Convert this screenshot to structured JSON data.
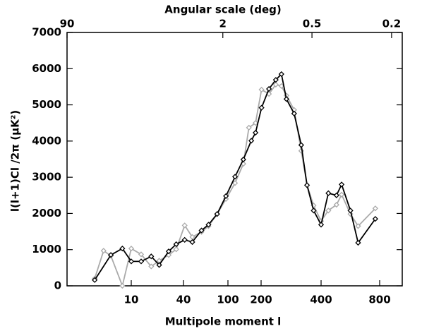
{
  "chart_data": {
    "type": "line",
    "title": "Angular scale (deg)",
    "x_label": "Multipole moment l",
    "y_label": "l(l+1)Cl /2π (μK²)",
    "xlim": [
      2,
      1000
    ],
    "xticks": [
      10,
      40,
      100,
      200,
      400,
      800
    ],
    "x2ticks": [
      90,
      2,
      0.5,
      0.2
    ],
    "ylim": [
      0,
      7000
    ],
    "yticks": [
      0,
      1000,
      2000,
      3000,
      4000,
      5000,
      6000,
      7000
    ],
    "series": [
      {
        "color": "#aaaaaa",
        "x": [
          4,
          5,
          6,
          8,
          10,
          13,
          17,
          21,
          27,
          33,
          41,
          48,
          58,
          67,
          80,
          96,
          116,
          138,
          155,
          178,
          201,
          219,
          237,
          253,
          268,
          293,
          318,
          340,
          367,
          400,
          436,
          480,
          510,
          566,
          620,
          760
        ],
        "values": [
          200,
          970,
          830,
          0,
          1030,
          870,
          535,
          695,
          850,
          1010,
          1670,
          1350,
          1490,
          1650,
          1985,
          2400,
          2840,
          3370,
          4370,
          4500,
          5420,
          5300,
          5560,
          5520,
          5260,
          4860,
          3730,
          2780,
          2220,
          1790,
          2080,
          2240,
          2520,
          1985,
          1650,
          2140
        ]
      },
      {
        "color": "#000000",
        "x": [
          4,
          6,
          8,
          10,
          13,
          17,
          21,
          27,
          33,
          41,
          48,
          58,
          67,
          80,
          96,
          116,
          138,
          163,
          178,
          201,
          219,
          237,
          253,
          268,
          293,
          318,
          340,
          367,
          400,
          436,
          480,
          510,
          566,
          620,
          760
        ],
        "values": [
          160,
          853,
          1032,
          675,
          675,
          813,
          575,
          952,
          1150,
          1270,
          1210,
          1530,
          1690,
          1985,
          2480,
          3015,
          3490,
          4010,
          4230,
          4920,
          5440,
          5690,
          5850,
          5160,
          4760,
          3890,
          2780,
          2080,
          1690,
          2560,
          2500,
          2800,
          2080,
          1190,
          1850
        ]
      }
    ]
  }
}
